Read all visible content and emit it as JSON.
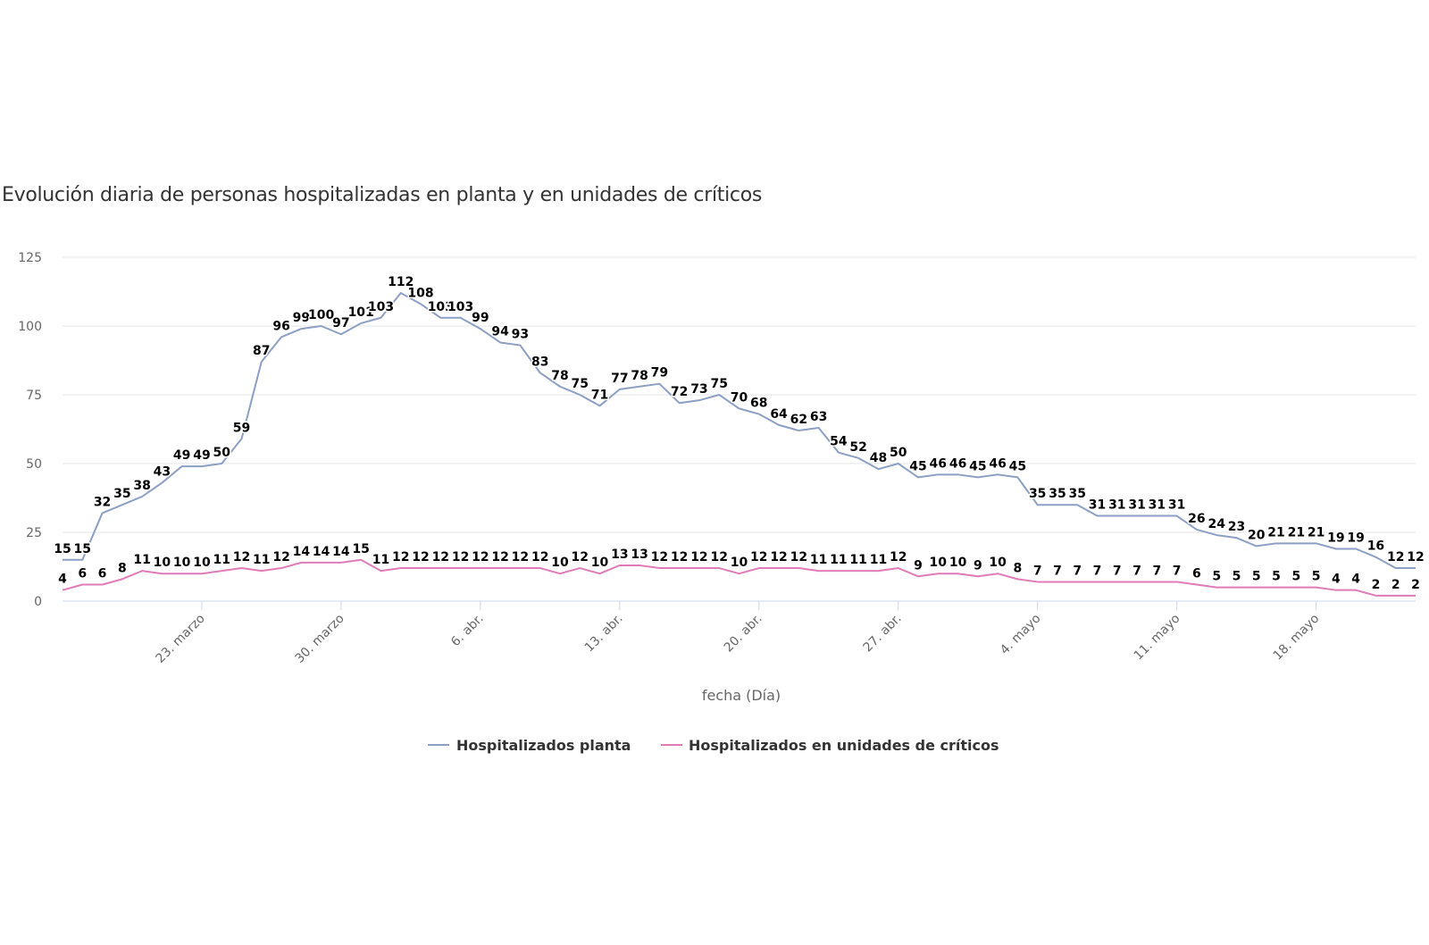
{
  "chart_data": {
    "type": "line",
    "title": "Evolución diaria de personas hospitalizadas en planta y en unidades de críticos",
    "xlabel": "fecha (Día)",
    "ylabel": "",
    "ylim": [
      0,
      125
    ],
    "yticks": [
      "0",
      "25",
      "50",
      "75",
      "100",
      "125"
    ],
    "grid": true,
    "legend_position": "bottom",
    "x_start": "2020-03-16",
    "xticks": [
      {
        "label": "23. marzo",
        "day_index": 7
      },
      {
        "label": "30. marzo",
        "day_index": 14
      },
      {
        "label": "6. abr.",
        "day_index": 21
      },
      {
        "label": "13. abr.",
        "day_index": 28
      },
      {
        "label": "20. abr.",
        "day_index": 35
      },
      {
        "label": "27. abr.",
        "day_index": 42
      },
      {
        "label": "4. mayo",
        "day_index": 49
      },
      {
        "label": "11. mayo",
        "day_index": 56
      },
      {
        "label": "18. mayo",
        "day_index": 63
      }
    ],
    "series": [
      {
        "name": "Hospitalizados planta",
        "color": "#8c9fc4",
        "values": [
          15,
          15,
          32,
          35,
          38,
          43,
          49,
          49,
          50,
          59,
          87,
          96,
          99,
          100,
          97,
          101,
          103,
          112,
          108,
          103,
          103,
          99,
          94,
          93,
          83,
          78,
          75,
          71,
          77,
          78,
          79,
          72,
          73,
          75,
          70,
          68,
          64,
          62,
          63,
          54,
          52,
          48,
          50,
          45,
          46,
          46,
          45,
          46,
          45,
          35,
          35,
          35,
          31,
          31,
          31,
          31,
          31,
          26,
          24,
          23,
          20,
          21,
          21,
          21,
          19,
          19,
          16,
          12,
          12
        ]
      },
      {
        "name": "Hospitalizados en unidades de críticos",
        "color": "#e07bb8",
        "values": [
          4,
          6,
          6,
          8,
          11,
          10,
          10,
          10,
          11,
          12,
          11,
          12,
          14,
          14,
          14,
          15,
          11,
          12,
          12,
          12,
          12,
          12,
          12,
          12,
          12,
          10,
          12,
          10,
          13,
          13,
          12,
          12,
          12,
          12,
          10,
          12,
          12,
          12,
          11,
          11,
          11,
          11,
          12,
          9,
          10,
          10,
          9,
          10,
          8,
          7,
          7,
          7,
          7,
          7,
          7,
          7,
          7,
          6,
          5,
          5,
          5,
          5,
          5,
          5,
          4,
          4,
          2,
          2,
          2
        ]
      }
    ]
  }
}
